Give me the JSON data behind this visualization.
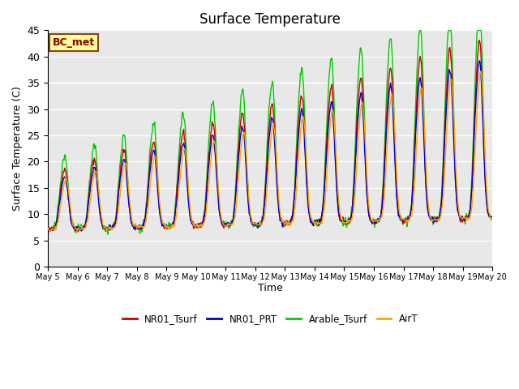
{
  "title": "Surface Temperature",
  "xlabel": "Time",
  "ylabel": "Surface Temperature (C)",
  "ylim": [
    0,
    45
  ],
  "annotation": "BC_met",
  "bg_color": "#e8e8e8",
  "fig_bg": "#ffffff",
  "legend": [
    "NR01_Tsurf",
    "NR01_PRT",
    "Arable_Tsurf",
    "AirT"
  ],
  "colors": [
    "#cc0000",
    "#0000cc",
    "#00cc00",
    "#ffa500"
  ],
  "xtick_labels": [
    "May 5",
    "May 6",
    "May 7",
    "May 8",
    "May 9",
    "May 10",
    "May 11",
    "May 12",
    "May 13",
    "May 14",
    "May 15",
    "May 16",
    "May 17",
    "May 18",
    "May 19",
    "May 20"
  ],
  "lw": 1.0
}
